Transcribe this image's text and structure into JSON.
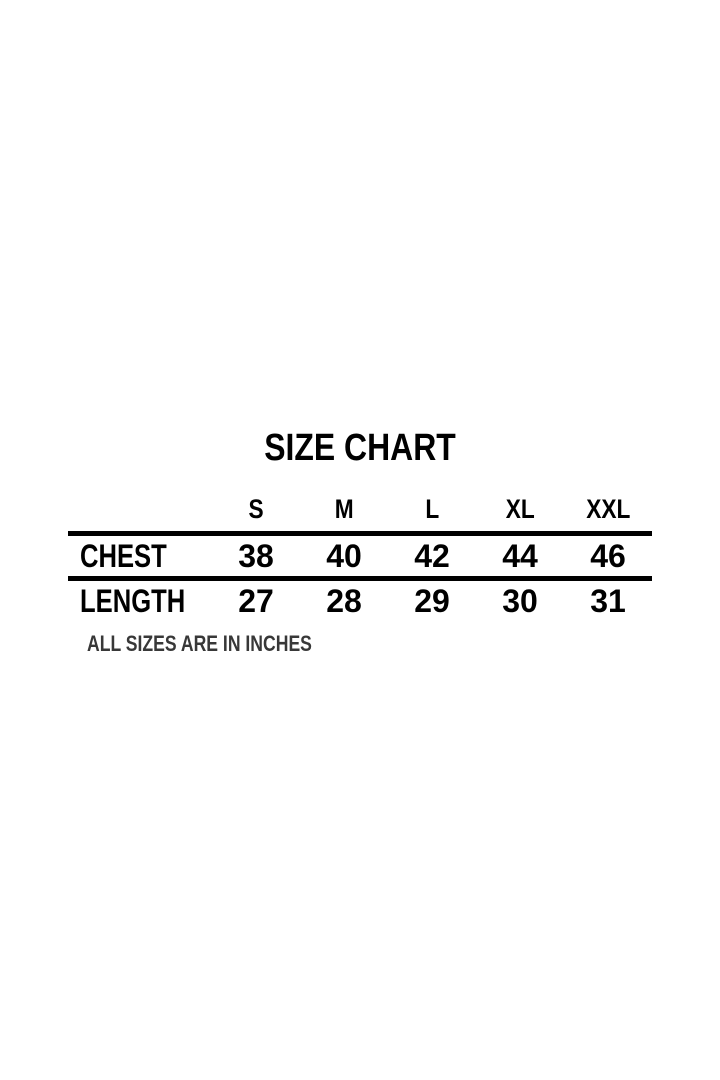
{
  "page": {
    "background": "#ffffff",
    "text_color": "#000000",
    "rule_color": "#000000",
    "note_color": "#383838"
  },
  "chart_data": {
    "type": "table",
    "title": "SIZE CHART",
    "columns": [
      "S",
      "M",
      "L",
      "XL",
      "XXL"
    ],
    "rows": [
      {
        "label": "CHEST",
        "values": [
          38,
          40,
          42,
          44,
          46
        ]
      },
      {
        "label": "LENGTH",
        "values": [
          27,
          28,
          29,
          30,
          31
        ]
      }
    ],
    "note": "ALL SIZES ARE IN INCHES",
    "units": "inches",
    "layout": {
      "grid": false,
      "dividers": "horizontal-only"
    }
  }
}
